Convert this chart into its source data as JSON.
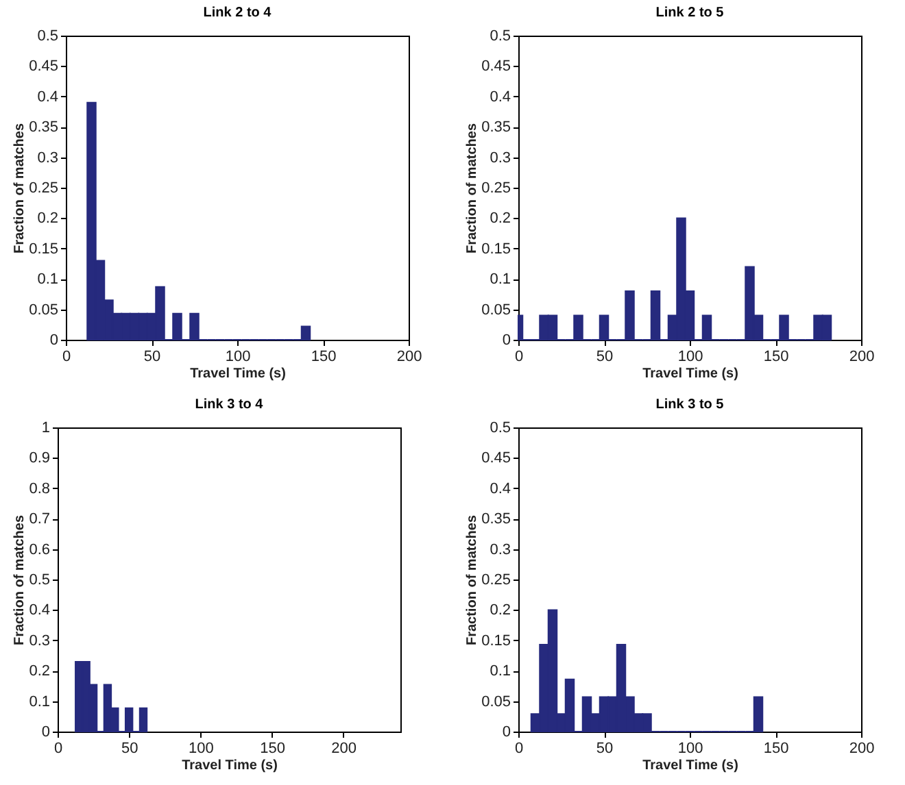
{
  "chart_data": [
    {
      "type": "histogram",
      "title": "Link 2 to 4",
      "xlabel": "Travel Time (s)",
      "ylabel": "Fraction of matches",
      "color": "#262a7e",
      "bins": [
        12.5,
        17.5,
        22.5,
        27.5,
        32.5,
        37.5,
        42.5,
        47.5,
        52.5,
        57.5,
        62.5,
        67.5,
        72.5,
        77.5,
        82.5,
        87.5,
        92.5,
        97.5,
        102.5,
        107.5,
        112.5,
        117.5,
        122.5,
        127.5,
        132.5,
        137.5,
        142.5
      ],
      "values": [
        0.39,
        0.13,
        0.065,
        0.043,
        0.043,
        0.043,
        0.043,
        0.043,
        0.087,
        0,
        0.043,
        0,
        0.043,
        0,
        0,
        0,
        0,
        0,
        0,
        0,
        0,
        0,
        0,
        0,
        0,
        0.022
      ],
      "xlim": [
        0,
        200
      ],
      "xticks": [
        0,
        50,
        100,
        150,
        200
      ],
      "ylim": [
        0,
        0.5
      ],
      "yticks": [
        0,
        0.05,
        0.1,
        0.15,
        0.2,
        0.25,
        0.3,
        0.35,
        0.4,
        0.45,
        0.5
      ]
    },
    {
      "type": "histogram",
      "title": "Link 2 to 5",
      "xlabel": "Travel Time (s)",
      "ylabel": "Fraction of matches",
      "color": "#262a7e",
      "bins": [
        0,
        2.5,
        12.5,
        17.5,
        22.5,
        27.5,
        32.5,
        37.5,
        42.5,
        47.5,
        52.5,
        57.5,
        62.5,
        67.5,
        72.5,
        77.5,
        82.5,
        87.5,
        92.5,
        97.5,
        102.5,
        107.5,
        112.5,
        117.5,
        122.5,
        127.5,
        132.5,
        137.5,
        142.5,
        147.5,
        152.5,
        157.5,
        162.5,
        167.5,
        172.5,
        177.5,
        182.5
      ],
      "values": [
        0.04,
        0,
        0.04,
        0.04,
        0,
        0,
        0.04,
        0,
        0,
        0.04,
        0,
        0,
        0.08,
        0,
        0,
        0.08,
        0,
        0.04,
        0.2,
        0.08,
        0,
        0.04,
        0,
        0,
        0,
        0,
        0.12,
        0.04,
        0,
        0,
        0.04,
        0,
        0,
        0,
        0.04,
        0.04
      ],
      "xlim": [
        0,
        200
      ],
      "xticks": [
        0,
        50,
        100,
        150,
        200
      ],
      "ylim": [
        0,
        0.5
      ],
      "yticks": [
        0,
        0.05,
        0.1,
        0.15,
        0.2,
        0.25,
        0.3,
        0.35,
        0.4,
        0.45,
        0.5
      ]
    },
    {
      "type": "histogram",
      "title": "Link 3 to 4",
      "xlabel": "Travel Time (s)",
      "ylabel": "Fraction of matches",
      "color": "#262a7e",
      "bins": [
        12.5,
        17.5,
        22.5,
        27.5,
        32.5,
        37.5,
        42.5,
        47.5,
        52.5,
        57.5,
        62.5
      ],
      "values": [
        0.23,
        0.23,
        0.154,
        0,
        0.154,
        0.077,
        0,
        0.077,
        0,
        0.077
      ],
      "xlim": [
        0,
        240
      ],
      "xticks": [
        0,
        50,
        100,
        150,
        200
      ],
      "ylim": [
        0,
        1
      ],
      "yticks": [
        0,
        0.1,
        0.2,
        0.3,
        0.4,
        0.5,
        0.6,
        0.7,
        0.8,
        0.9,
        1
      ]
    },
    {
      "type": "histogram",
      "title": "Link 3 to 5",
      "xlabel": "Travel Time (s)",
      "ylabel": "Fraction of matches",
      "color": "#262a7e",
      "bins": [
        7.5,
        12.5,
        17.5,
        22.5,
        27.5,
        32.5,
        37.5,
        42.5,
        47.5,
        52.5,
        57.5,
        62.5,
        67.5,
        72.5,
        77.5,
        82.5,
        87.5,
        92.5,
        97.5,
        102.5,
        107.5,
        112.5,
        117.5,
        122.5,
        127.5,
        132.5,
        137.5,
        142.5
      ],
      "values": [
        0.029,
        0.143,
        0.2,
        0.029,
        0.086,
        0,
        0.057,
        0.029,
        0.057,
        0.057,
        0.143,
        0.057,
        0.029,
        0.029,
        0,
        0,
        0,
        0,
        0,
        0,
        0,
        0,
        0,
        0,
        0,
        0,
        0.057
      ],
      "xlim": [
        0,
        200
      ],
      "xticks": [
        0,
        50,
        100,
        150,
        200
      ],
      "ylim": [
        0,
        0.5
      ],
      "yticks": [
        0,
        0.05,
        0.1,
        0.15,
        0.2,
        0.25,
        0.3,
        0.35,
        0.4,
        0.45,
        0.5
      ]
    }
  ]
}
